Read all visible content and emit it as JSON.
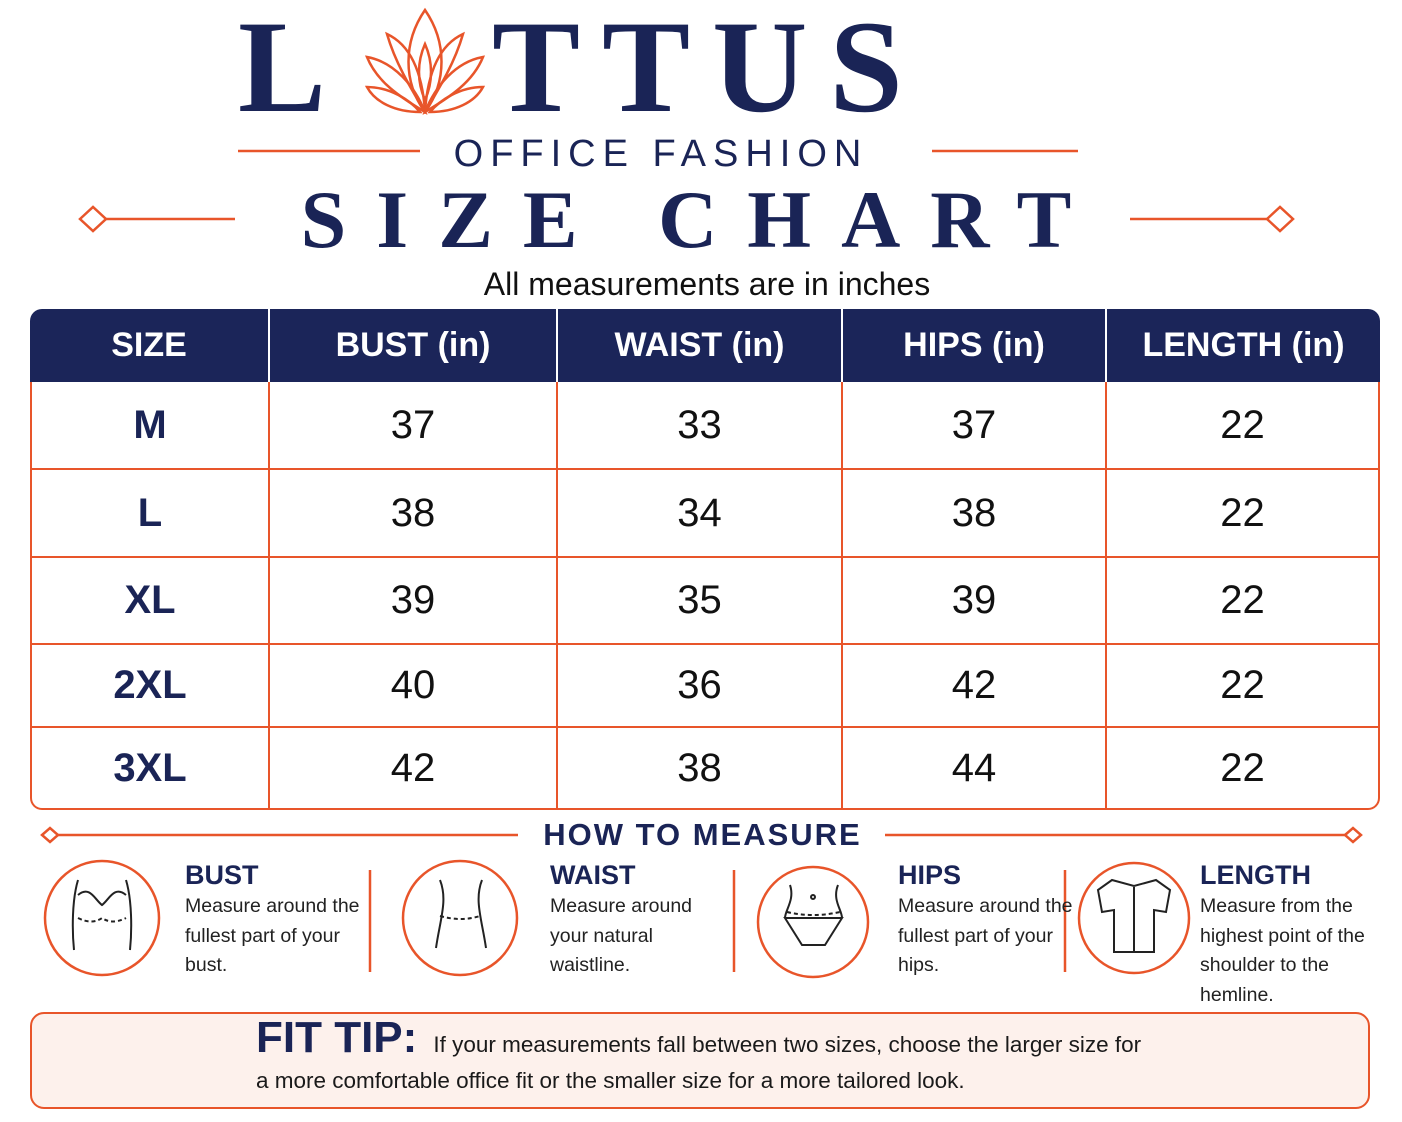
{
  "logo": {
    "lead": "L",
    "tail": "TTUS"
  },
  "tagline": "OFFICE FASHION",
  "title": "SIZE CHART",
  "subtitle": "All measurements are in inches",
  "table": {
    "columns": [
      "SIZE",
      "BUST (in)",
      "WAIST (in)",
      "HIPS (in)",
      "LENGTH (in)"
    ],
    "rows": [
      [
        "M",
        37,
        33,
        37,
        22
      ],
      [
        "L",
        38,
        34,
        38,
        22
      ],
      [
        "XL",
        39,
        35,
        39,
        22
      ],
      [
        "2XL",
        40,
        36,
        42,
        22
      ],
      [
        "3XL",
        42,
        38,
        44,
        22
      ]
    ]
  },
  "measure": {
    "title": "HOW TO MEASURE",
    "items": [
      {
        "label": "BUST",
        "text": "Measure around the fullest part of your bust."
      },
      {
        "label": "WAIST",
        "text": "Measure around your natural waistline."
      },
      {
        "label": "HIPS",
        "text": "Measure around the fullest part of your hips."
      },
      {
        "label": "LENGTH",
        "text": "Measure from the highest point of the shoulder to the hemline."
      }
    ]
  },
  "fit_tip": {
    "label": "FIT TIP:",
    "text": "If your measurements fall between two sizes, choose the larger size for a more comfortable office fit or the smaller size for a more tailored look."
  }
}
